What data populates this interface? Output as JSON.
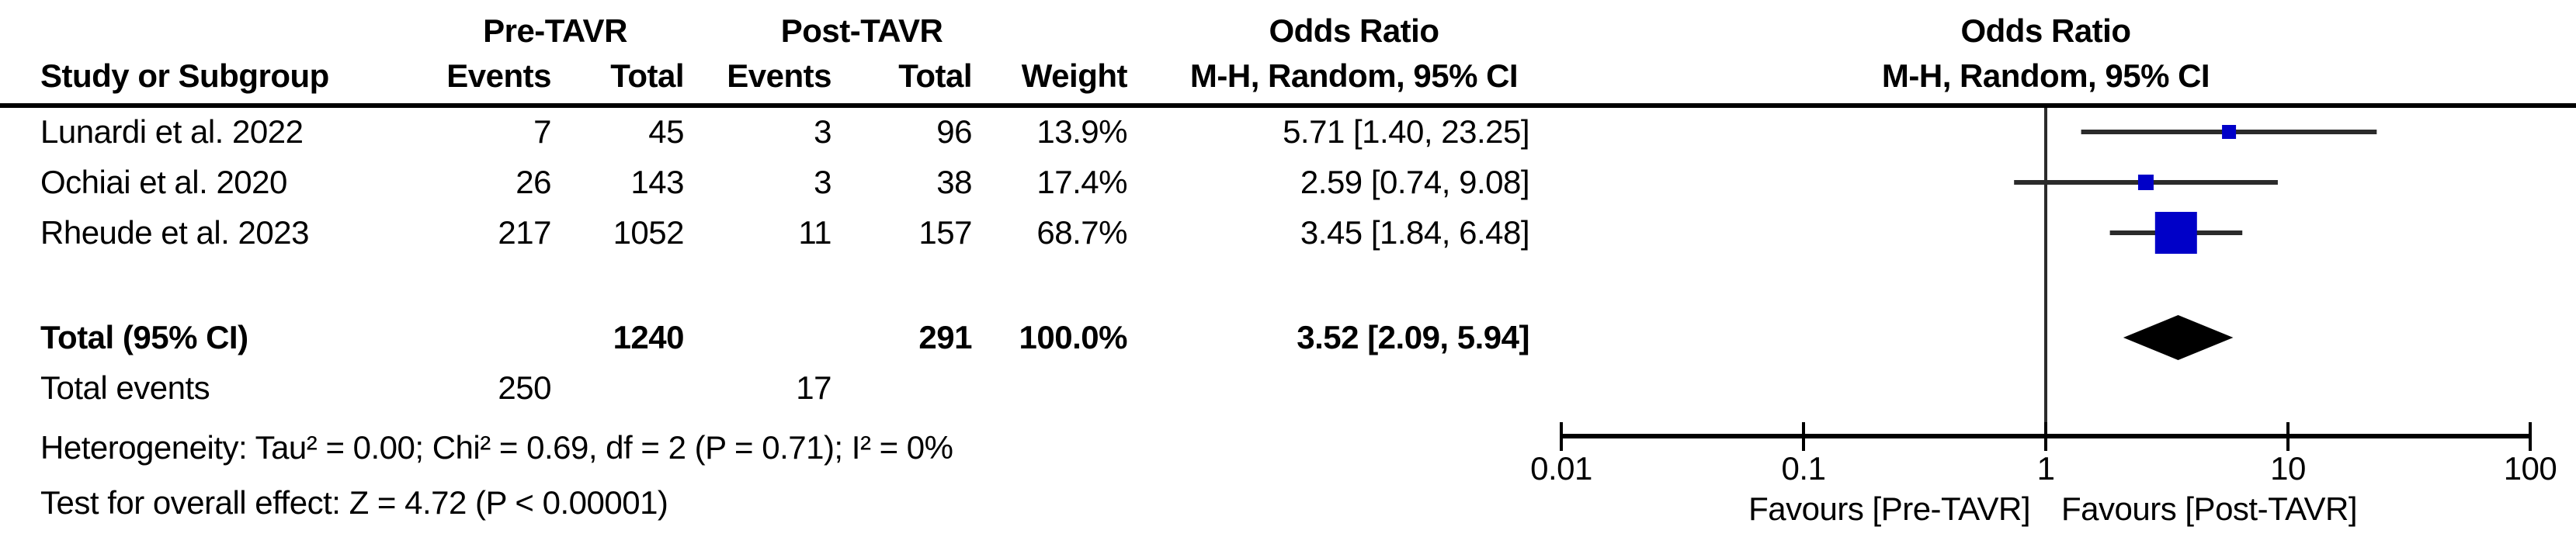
{
  "table": {
    "group_headers": {
      "pre": "Pre-TAVR",
      "post": "Post-TAVR"
    },
    "or_header_left": "Odds Ratio",
    "or_header_right": "Odds Ratio",
    "method_header_left": "M-H, Random, 95% CI",
    "method_header_right": "M-H, Random, 95% CI",
    "columns": {
      "study": "Study or Subgroup",
      "events_pre": "Events",
      "total_pre": "Total",
      "events_post": "Events",
      "total_post": "Total",
      "weight": "Weight"
    },
    "rows": [
      {
        "study": "Lunardi et al. 2022",
        "events_pre": "7",
        "total_pre": "45",
        "events_post": "3",
        "total_post": "96",
        "weight": "13.9%",
        "or_ci": "5.71 [1.40, 23.25]"
      },
      {
        "study": "Ochiai et al. 2020",
        "events_pre": "26",
        "total_pre": "143",
        "events_post": "3",
        "total_post": "38",
        "weight": "17.4%",
        "or_ci": "2.59 [0.74, 9.08]"
      },
      {
        "study": "Rheude et al. 2023",
        "events_pre": "217",
        "total_pre": "1052",
        "events_post": "11",
        "total_post": "157",
        "weight": "68.7%",
        "or_ci": "3.45 [1.84, 6.48]"
      }
    ],
    "total_row": {
      "label": "Total (95% CI)",
      "total_pre": "1240",
      "total_post": "291",
      "weight": "100.0%",
      "or_ci": "3.52 [2.09, 5.94]"
    },
    "total_events_row": {
      "label": "Total events",
      "events_pre": "250",
      "events_post": "17"
    },
    "heterogeneity_line": "Heterogeneity: Tau² = 0.00; Chi² = 0.69, df = 2 (P = 0.71); I² = 0%",
    "overall_effect_line": "Test for overall effect: Z = 4.72 (P < 0.00001)"
  },
  "chart_data": {
    "type": "forest",
    "effect_label": "Odds Ratio",
    "method": "M-H, Random, 95% CI",
    "x_scale": "log",
    "x_ticks": [
      0.01,
      0.1,
      1,
      10,
      100
    ],
    "x_tick_labels": [
      "0.01",
      "0.1",
      "1",
      "10",
      "100"
    ],
    "no_effect_value": 1,
    "studies": [
      {
        "name": "Lunardi et al. 2022",
        "pre_events": 7,
        "pre_total": 45,
        "post_events": 3,
        "post_total": 96,
        "weight_pct": 13.9,
        "or": 5.71,
        "ci_low": 1.4,
        "ci_high": 23.25
      },
      {
        "name": "Ochiai et al. 2020",
        "pre_events": 26,
        "pre_total": 143,
        "post_events": 3,
        "post_total": 38,
        "weight_pct": 17.4,
        "or": 2.59,
        "ci_low": 0.74,
        "ci_high": 9.08
      },
      {
        "name": "Rheude et al. 2023",
        "pre_events": 217,
        "pre_total": 1052,
        "post_events": 11,
        "post_total": 157,
        "weight_pct": 68.7,
        "or": 3.45,
        "ci_low": 1.84,
        "ci_high": 6.48
      }
    ],
    "total": {
      "or": 3.52,
      "ci_low": 2.09,
      "ci_high": 5.94,
      "pre_total": 1240,
      "post_total": 291,
      "pre_events": 250,
      "post_events": 17,
      "weight_pct": 100.0
    },
    "heterogeneity": {
      "tau2": 0.0,
      "chi2": 0.69,
      "df": 2,
      "p": 0.71,
      "i2_pct": 0
    },
    "overall_effect": {
      "z": 4.72,
      "p_text": "P < 0.00001"
    },
    "favours": {
      "left": "Favours [Pre-TAVR]",
      "right": "Favours [Post-TAVR]"
    },
    "marker_color": "#0000C8",
    "line_color": "#2b2b2b",
    "diamond_color": "#000000"
  }
}
